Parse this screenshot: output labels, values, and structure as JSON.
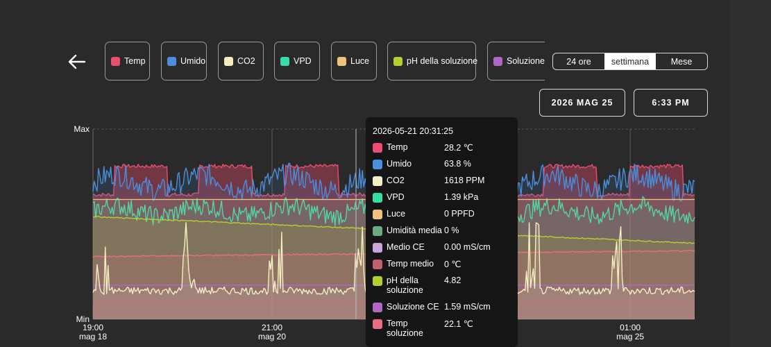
{
  "colors": {
    "temp": "#ea4d6e",
    "umido": "#4a8fde",
    "co2": "#f5efc2",
    "vpd": "#37dcaa",
    "luce": "#f0c27a",
    "ph": "#b7cf2e",
    "soluzione": "#b168c5",
    "umidita_media": "#6cab82",
    "medio_ce": "#c9a5d8",
    "temp_medio": "#c0606e",
    "temp_soluzione": "#ea6d85"
  },
  "legend": [
    {
      "key": "temp",
      "label": "Temp"
    },
    {
      "key": "umido",
      "label": "Umido"
    },
    {
      "key": "co2",
      "label": "CO2"
    },
    {
      "key": "vpd",
      "label": "VPD"
    },
    {
      "key": "luce",
      "label": "Luce"
    },
    {
      "key": "ph",
      "label": "pH della soluzione"
    },
    {
      "key": "soluzione",
      "label": "Soluzione CE"
    }
  ],
  "range": {
    "options": [
      "24 ore",
      "settimana",
      "Mese"
    ],
    "selected": "settimana"
  },
  "date_label": "2026 MAG 25",
  "time_label": "6:33 PM",
  "tooltip": {
    "timestamp": "2026-05-21 20:31:25",
    "rows": [
      {
        "key": "temp",
        "name": "Temp",
        "value": "28.2 ℃"
      },
      {
        "key": "umido",
        "name": "Umido",
        "value": "63.8 %"
      },
      {
        "key": "co2",
        "name": "CO2",
        "value": "1618 PPM"
      },
      {
        "key": "vpd",
        "name": "VPD",
        "value": "1.39 kPa"
      },
      {
        "key": "luce",
        "name": "Luce",
        "value": "0 PPFD"
      },
      {
        "key": "umidita_media",
        "name": "Umidità media",
        "value": "0 %"
      },
      {
        "key": "medio_ce",
        "name": "Medio CE",
        "value": "0.00 mS/cm"
      },
      {
        "key": "temp_medio",
        "name": "Temp medio",
        "value": "0 ℃"
      },
      {
        "key": "ph",
        "name": "pH della soluzione",
        "value": "4.82"
      },
      {
        "key": "soluzione",
        "name": "Soluzione CE",
        "value": "1.59 mS/cm"
      },
      {
        "key": "temp_soluzione",
        "name": "Temp soluzione",
        "value": "22.1 ℃"
      }
    ]
  },
  "chart_data": {
    "type": "area",
    "y_labels": {
      "max": "Max",
      "min": "Min"
    },
    "x_ticks": [
      {
        "time": "19:00",
        "date": "mag 18",
        "t": 0
      },
      {
        "time": "21:00",
        "date": "mag 20",
        "t": 2.083
      },
      {
        "time": "01:00",
        "date": "mag 25",
        "t": 6.25
      }
    ],
    "x_range": [
      0,
      7
    ],
    "cursor_t": 3.06,
    "y_scale": "normalized 0-100 per series",
    "series": [
      {
        "key": "temp",
        "name": "Temp",
        "pattern": "day",
        "base": 73,
        "amp": 15,
        "noise": 1
      },
      {
        "key": "umido",
        "name": "Umido",
        "pattern": "noisy",
        "base": 72,
        "amp": 12,
        "noise": 6
      },
      {
        "key": "vpd",
        "name": "VPD",
        "pattern": "noisy",
        "base": 57,
        "amp": 8,
        "noise": 5
      },
      {
        "key": "luce",
        "name": "Luce",
        "pattern": "flat",
        "value": 63
      },
      {
        "key": "ph",
        "name": "pH della soluzione",
        "pattern": "drift",
        "start": 54,
        "end": 40
      },
      {
        "key": "temp_soluzione",
        "name": "Temp soluzione",
        "pattern": "drift",
        "start": 33,
        "end": 36
      },
      {
        "key": "soluzione",
        "name": "Soluzione CE",
        "pattern": "flat",
        "value": 18
      },
      {
        "key": "temp_medio",
        "name": "Temp medio",
        "pattern": "flat",
        "value": 9
      },
      {
        "key": "co2",
        "name": "CO2",
        "pattern": "spiky",
        "base": 15,
        "noise": 2,
        "spike": 38
      }
    ]
  }
}
